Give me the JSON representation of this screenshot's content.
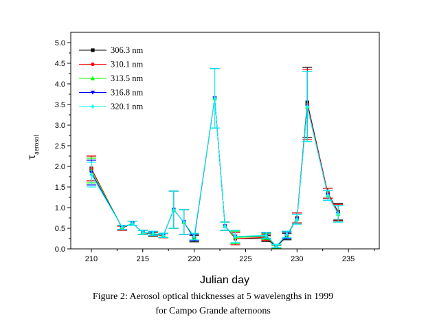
{
  "chart_data": {
    "type": "line",
    "title": "",
    "xlabel": "Julian day",
    "ylabel_main": "τ",
    "ylabel_sub": "aerosol",
    "xlim": [
      208,
      238
    ],
    "ylim": [
      0,
      5.25
    ],
    "x_ticks": [
      210,
      215,
      220,
      225,
      230,
      235
    ],
    "y_ticks": [
      0.0,
      0.5,
      1.0,
      1.5,
      2.0,
      2.5,
      3.0,
      3.5,
      4.0,
      4.5,
      5.0
    ],
    "y_tick_labels": [
      "0.0",
      "0.5",
      "1.0",
      "1.5",
      "2.0",
      "2.5",
      "3.0",
      "3.5",
      "4.0",
      "4.5",
      "5.0"
    ],
    "grid": false,
    "legend_position": "top-left",
    "x": [
      210,
      213,
      214,
      215,
      216,
      217,
      218,
      219,
      220,
      222,
      223,
      224,
      227,
      228,
      229,
      230,
      231,
      233,
      234
    ],
    "series": [
      {
        "name": "306.3 nm",
        "color": "#000000",
        "marker": "square",
        "values": [
          1.95,
          0.5,
          0.62,
          0.4,
          0.35,
          0.32,
          0.95,
          0.65,
          0.25,
          3.65,
          0.55,
          0.25,
          0.25,
          0.05,
          0.3,
          0.75,
          3.55,
          1.35,
          0.9
        ],
        "errors": [
          0.3,
          0.05,
          0.05,
          0.05,
          0.05,
          0.05,
          0.45,
          0.3,
          0.08,
          0.72,
          0.1,
          0.15,
          0.07,
          0.04,
          0.08,
          0.12,
          0.85,
          0.12,
          0.2
        ]
      },
      {
        "name": "310.1 nm",
        "color": "#ff0000",
        "marker": "circle",
        "values": [
          1.95,
          0.5,
          0.62,
          0.4,
          0.35,
          0.32,
          0.95,
          0.65,
          0.28,
          3.65,
          0.55,
          0.25,
          0.28,
          0.06,
          0.33,
          0.75,
          3.5,
          1.35,
          0.88
        ],
        "errors": [
          0.3,
          0.05,
          0.05,
          0.05,
          0.05,
          0.05,
          0.45,
          0.3,
          0.08,
          0.72,
          0.1,
          0.15,
          0.07,
          0.04,
          0.08,
          0.12,
          0.85,
          0.12,
          0.2
        ]
      },
      {
        "name": "313.5 nm",
        "color": "#00ff00",
        "marker": "triangle-up",
        "values": [
          1.9,
          0.52,
          0.62,
          0.4,
          0.36,
          0.33,
          0.95,
          0.65,
          0.28,
          3.65,
          0.55,
          0.28,
          0.3,
          0.06,
          0.33,
          0.72,
          3.45,
          1.3,
          0.85
        ],
        "errors": [
          0.3,
          0.05,
          0.05,
          0.05,
          0.05,
          0.05,
          0.45,
          0.3,
          0.08,
          0.72,
          0.1,
          0.15,
          0.07,
          0.04,
          0.08,
          0.12,
          0.85,
          0.12,
          0.2
        ]
      },
      {
        "name": "316.8 nm",
        "color": "#0000ff",
        "marker": "triangle-down",
        "values": [
          1.85,
          0.52,
          0.62,
          0.4,
          0.37,
          0.33,
          0.95,
          0.65,
          0.28,
          3.65,
          0.55,
          0.3,
          0.32,
          0.07,
          0.33,
          0.72,
          3.45,
          1.3,
          0.85
        ],
        "errors": [
          0.3,
          0.05,
          0.05,
          0.05,
          0.05,
          0.05,
          0.45,
          0.3,
          0.08,
          0.72,
          0.1,
          0.15,
          0.07,
          0.04,
          0.08,
          0.12,
          0.85,
          0.12,
          0.2
        ]
      },
      {
        "name": "320.1 nm",
        "color": "#00ffff",
        "marker": "diamond",
        "values": [
          1.8,
          0.52,
          0.62,
          0.4,
          0.38,
          0.33,
          0.95,
          0.65,
          0.3,
          3.65,
          0.55,
          0.3,
          0.33,
          0.07,
          0.35,
          0.72,
          3.45,
          1.3,
          0.85
        ],
        "errors": [
          0.3,
          0.05,
          0.05,
          0.05,
          0.05,
          0.05,
          0.45,
          0.3,
          0.08,
          0.72,
          0.1,
          0.15,
          0.07,
          0.04,
          0.08,
          0.12,
          0.85,
          0.12,
          0.2
        ]
      }
    ]
  },
  "caption": {
    "line1": "Figure 2: Aerosol optical thicknesses at 5 wavelengths in 1999",
    "line2": "for Campo Grande afternoons"
  }
}
